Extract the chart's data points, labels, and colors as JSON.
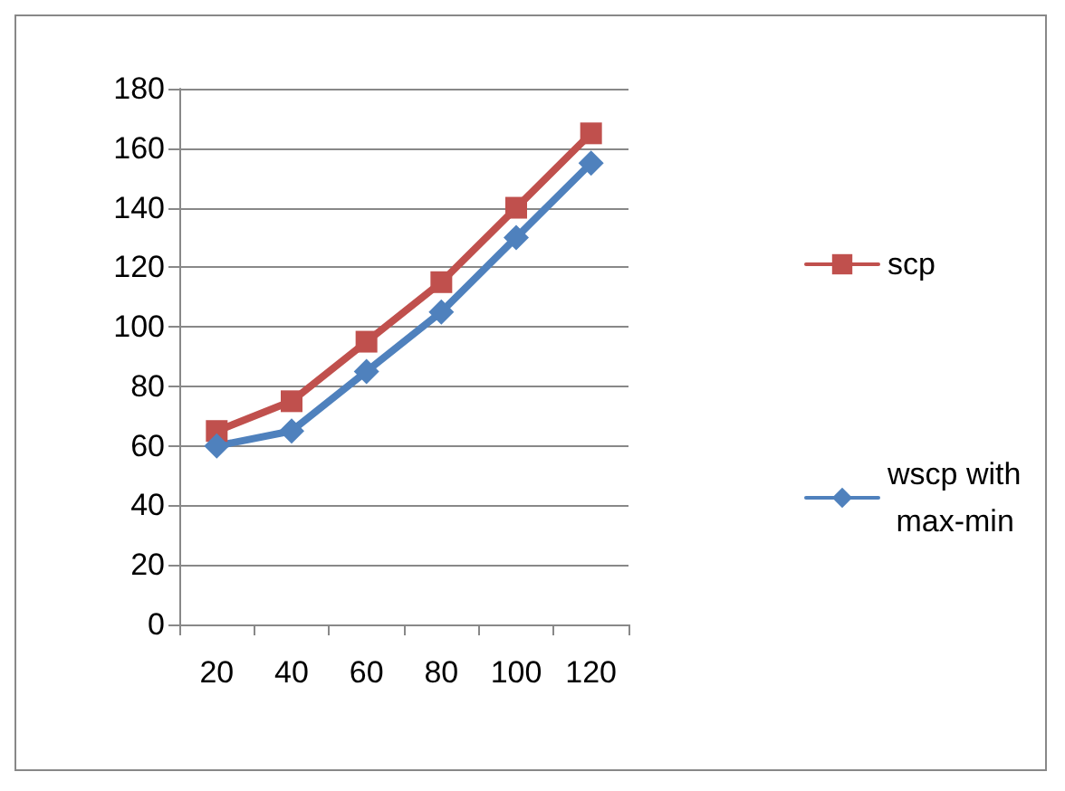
{
  "chart_data": {
    "type": "line",
    "categories": [
      "20",
      "40",
      "60",
      "80",
      "100",
      "120"
    ],
    "series": [
      {
        "name": "scp",
        "color": "#c0504d",
        "marker": "square",
        "values": [
          65,
          75,
          95,
          115,
          140,
          165
        ]
      },
      {
        "name": "wscp with max-min",
        "color": "#4f81bd",
        "marker": "diamond",
        "values": [
          60,
          65,
          85,
          105,
          130,
          155
        ]
      }
    ],
    "ylim": [
      0,
      180
    ],
    "yticks": [
      0,
      20,
      40,
      60,
      80,
      100,
      120,
      140,
      160,
      180
    ],
    "grid": "y",
    "legend": "right"
  }
}
